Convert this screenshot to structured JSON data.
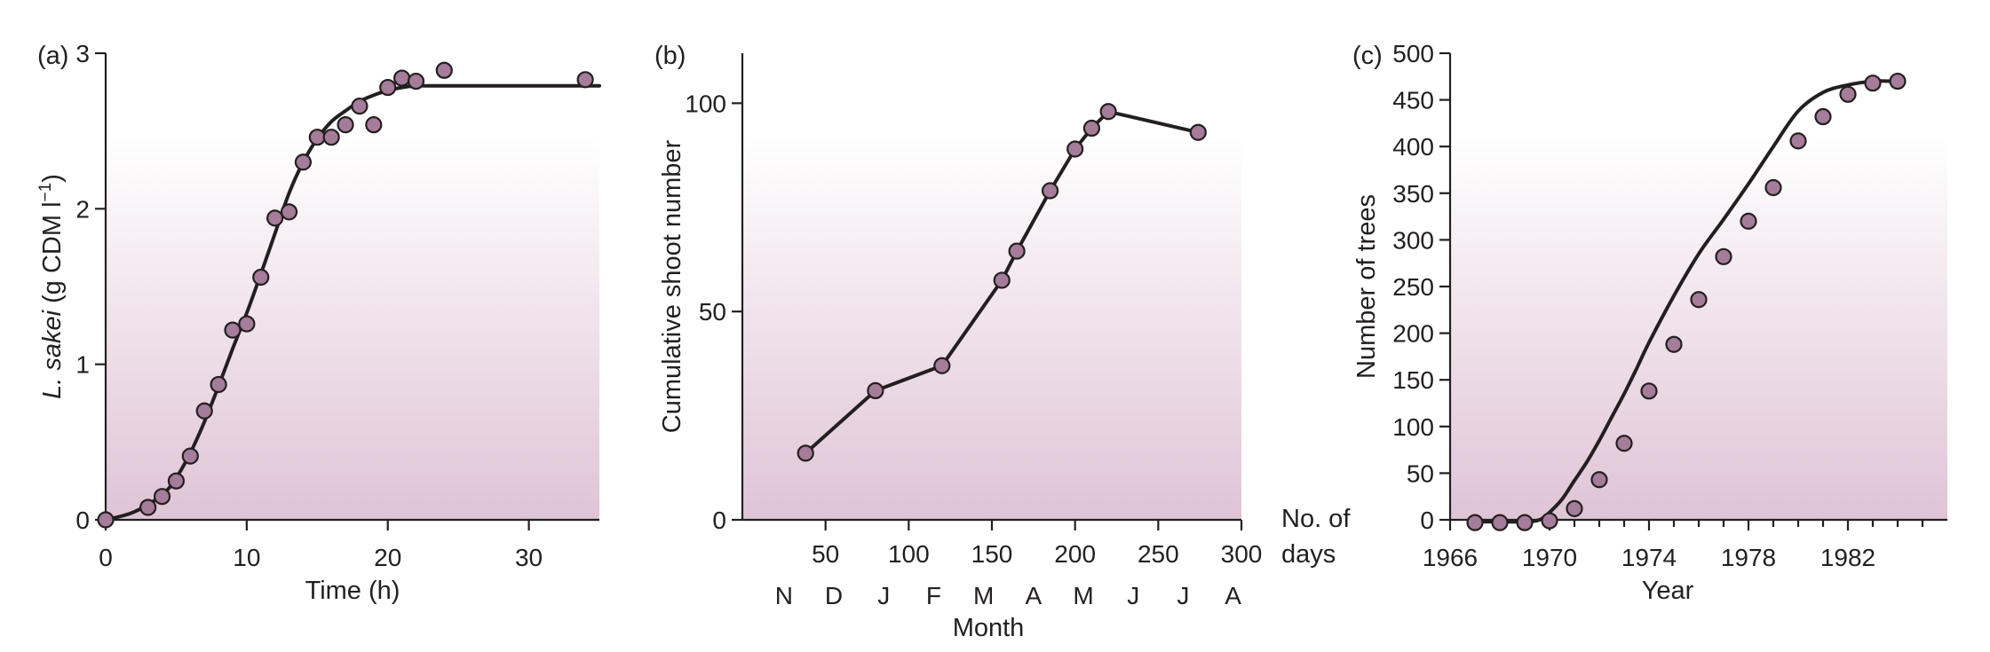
{
  "colors": {
    "marker_fill": "#a57c99",
    "line": "#231f20",
    "gradient_top": "#ffffff",
    "gradient_bottom": "#dfc4d6"
  },
  "chart_data": [
    {
      "type": "scatter",
      "panel": "(a)",
      "xlabel": "Time (h)",
      "ylabel_italic": "L. sakei",
      "ylabel_rest": " (g CDM l",
      "ylabel_sup": "−1",
      "ylabel_close": ")",
      "xlim": [
        0,
        35
      ],
      "ylim": [
        0,
        3
      ],
      "xticks": [
        0,
        10,
        20,
        30
      ],
      "yticks": [
        0,
        1,
        2,
        3
      ],
      "points": {
        "x": [
          0,
          3,
          4,
          5,
          6,
          7,
          8,
          9,
          10,
          11,
          12,
          13,
          14,
          15,
          16,
          17,
          18,
          19,
          20,
          21,
          22,
          24,
          34
        ],
        "y": [
          0,
          0.08,
          0.15,
          0.25,
          0.41,
          0.7,
          0.87,
          1.22,
          1.26,
          1.56,
          1.94,
          1.98,
          2.3,
          2.46,
          2.46,
          2.54,
          2.66,
          2.54,
          2.78,
          2.84,
          2.82,
          2.89,
          2.83
        ]
      },
      "fit": {
        "x": [
          0,
          2,
          4,
          5,
          6,
          7,
          8,
          9,
          10,
          11,
          12,
          13,
          14,
          15,
          16,
          17,
          18,
          19,
          20,
          21,
          22,
          23,
          24,
          35
        ],
        "y": [
          0,
          0.05,
          0.16,
          0.27,
          0.43,
          0.63,
          0.86,
          1.1,
          1.33,
          1.58,
          1.84,
          2.1,
          2.3,
          2.45,
          2.56,
          2.63,
          2.69,
          2.73,
          2.76,
          2.78,
          2.79,
          2.79,
          2.79,
          2.79
        ]
      }
    },
    {
      "type": "line",
      "panel": "(b)",
      "ylabel": "Cumulative shoot number",
      "xlabel": "Month",
      "days_label_line1": "No. of",
      "days_label_line2": "days",
      "xlim": [
        0,
        300
      ],
      "ylim": [
        0,
        112
      ],
      "xticks": [
        50,
        100,
        150,
        200,
        250,
        300
      ],
      "yticks": [
        0,
        50,
        100
      ],
      "months": [
        "N",
        "D",
        "J",
        "F",
        "M",
        "A",
        "M",
        "J",
        "J",
        "A"
      ],
      "month_days": [
        25,
        55,
        85,
        115,
        145,
        175,
        205,
        235,
        265,
        295
      ],
      "points": {
        "x": [
          38,
          80,
          120,
          156,
          165,
          185,
          200,
          210,
          220,
          274
        ],
        "y": [
          16,
          31,
          37,
          57.5,
          64.5,
          79,
          89,
          94,
          98,
          93
        ]
      }
    },
    {
      "type": "scatter",
      "panel": "(c)",
      "xlabel": "Year",
      "ylabel": "Number of trees",
      "xlim": [
        1966,
        1986
      ],
      "ylim": [
        0,
        500
      ],
      "xticks": [
        1966,
        1970,
        1974,
        1978,
        1982
      ],
      "yticks": [
        0,
        50,
        100,
        150,
        200,
        250,
        300,
        350,
        400,
        450,
        500
      ],
      "points": {
        "x": [
          1967,
          1968,
          1969,
          1970,
          1971,
          1972,
          1973,
          1974,
          1975,
          1976,
          1977,
          1978,
          1979,
          1980,
          1981,
          1982,
          1983,
          1984
        ],
        "y": [
          -3,
          -3,
          -3,
          -1,
          12,
          43,
          82,
          138,
          188,
          236,
          282,
          320,
          356,
          406,
          432,
          456,
          468,
          470
        ]
      },
      "fit": {
        "x": [
          1967,
          1968,
          1969,
          1969.6,
          1970,
          1970.5,
          1971,
          1971.5,
          1972,
          1972.5,
          1973,
          1973.5,
          1974,
          1975,
          1976,
          1977,
          1978,
          1979,
          1980,
          1981,
          1982,
          1983,
          1983.8
        ],
        "y": [
          -2,
          -2,
          -2,
          0,
          8,
          22,
          42,
          62,
          85,
          110,
          135,
          162,
          190,
          240,
          285,
          322,
          360,
          400,
          438,
          458,
          466,
          470,
          470
        ]
      }
    }
  ]
}
